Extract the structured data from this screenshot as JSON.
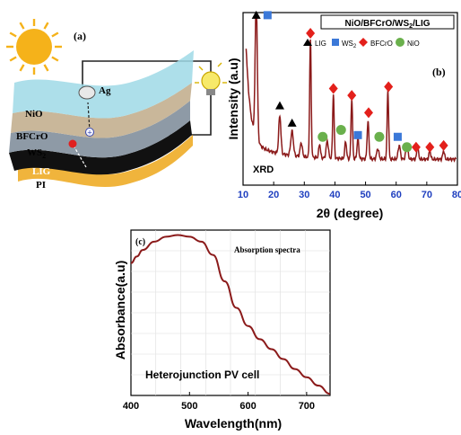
{
  "panel_a": {
    "label": "(a)",
    "layers": [
      "NiO",
      "BFCrO",
      "WS",
      "LIG",
      "PI"
    ],
    "ws_subscript": "2",
    "electrode": "Ag",
    "hole_symbol": "+",
    "colors": {
      "nio": "#9fd9e6",
      "bfcro": "#c9b79a",
      "ws2": "#8e9aa6",
      "lig": "#111111",
      "pi": "#f0b43c",
      "sun": "#f5b21a",
      "bulb": "#f7e96a"
    }
  },
  "chart_data": [
    {
      "panel": "(b)",
      "type": "line",
      "title_parts": [
        "NiO/BFCrO/WS",
        "2",
        "/LIG"
      ],
      "xlabel": "2θ (degree)",
      "ylabel": "Intensity (a.u)",
      "annotation": "XRD",
      "xlim": [
        10,
        80
      ],
      "xticks": [
        10,
        20,
        30,
        40,
        50,
        60,
        70,
        80
      ],
      "line_color": "#8b1a1a",
      "tick_color": "#1f3fbf",
      "legend": {
        "placement": "top",
        "entries": [
          {
            "label": "LIG",
            "marker": "triangle",
            "color": "#000000"
          },
          {
            "label": "WS",
            "sub": "2",
            "marker": "square",
            "color": "#3b78d8"
          },
          {
            "label": "BFCrO",
            "marker": "diamond",
            "color": "#e3201b"
          },
          {
            "label": "NiO",
            "marker": "circle",
            "color": "#6ab04c"
          }
        ]
      },
      "peaks": [
        {
          "x": 14.3,
          "h": 0.8,
          "w": 0.5
        },
        {
          "x": 22.0,
          "h": 0.22,
          "w": 0.5
        },
        {
          "x": 26.0,
          "h": 0.14,
          "w": 0.6
        },
        {
          "x": 29.0,
          "h": 0.08,
          "w": 0.5
        },
        {
          "x": 32.0,
          "h": 0.68,
          "w": 0.35
        },
        {
          "x": 35.0,
          "h": 0.08,
          "w": 0.4
        },
        {
          "x": 37.5,
          "h": 0.1,
          "w": 0.5
        },
        {
          "x": 39.5,
          "h": 0.37,
          "w": 0.35
        },
        {
          "x": 43.5,
          "h": 0.1,
          "w": 0.4
        },
        {
          "x": 45.5,
          "h": 0.35,
          "w": 0.35
        },
        {
          "x": 47.5,
          "h": 0.12,
          "w": 0.4
        },
        {
          "x": 50.8,
          "h": 0.22,
          "w": 0.4
        },
        {
          "x": 54.0,
          "h": 0.06,
          "w": 0.5
        },
        {
          "x": 57.3,
          "h": 0.4,
          "w": 0.35
        },
        {
          "x": 61.0,
          "h": 0.08,
          "w": 0.5
        },
        {
          "x": 63.5,
          "h": 0.08,
          "w": 0.5
        },
        {
          "x": 67.0,
          "h": 0.07,
          "w": 0.4
        },
        {
          "x": 71.0,
          "h": 0.05,
          "w": 0.4
        },
        {
          "x": 75.5,
          "h": 0.05,
          "w": 0.4
        }
      ],
      "markers": [
        {
          "x": 14.3,
          "y": 0.985,
          "marker": "triangle"
        },
        {
          "x": 18.0,
          "y": 0.985,
          "marker": "square"
        },
        {
          "x": 22.0,
          "y": 0.46,
          "marker": "triangle"
        },
        {
          "x": 26.0,
          "y": 0.36,
          "marker": "triangle"
        },
        {
          "x": 32.0,
          "y": 0.88,
          "marker": "diamond"
        },
        {
          "x": 36.0,
          "y": 0.28,
          "marker": "circle"
        },
        {
          "x": 39.5,
          "y": 0.56,
          "marker": "diamond"
        },
        {
          "x": 42.0,
          "y": 0.32,
          "marker": "circle"
        },
        {
          "x": 45.5,
          "y": 0.52,
          "marker": "diamond"
        },
        {
          "x": 47.5,
          "y": 0.29,
          "marker": "square"
        },
        {
          "x": 51.0,
          "y": 0.42,
          "marker": "diamond"
        },
        {
          "x": 54.5,
          "y": 0.28,
          "marker": "circle"
        },
        {
          "x": 57.5,
          "y": 0.57,
          "marker": "diamond"
        },
        {
          "x": 60.5,
          "y": 0.28,
          "marker": "square"
        },
        {
          "x": 63.5,
          "y": 0.22,
          "marker": "circle"
        },
        {
          "x": 66.5,
          "y": 0.22,
          "marker": "diamond"
        },
        {
          "x": 71.0,
          "y": 0.22,
          "marker": "diamond"
        },
        {
          "x": 75.5,
          "y": 0.23,
          "marker": "diamond"
        }
      ]
    },
    {
      "panel": "(c)",
      "type": "line",
      "title": "Absorption spectra",
      "xlabel": "Wavelength(nm)",
      "ylabel": "Absorbance(a.u)",
      "annotation": "Heterojunction PV cell",
      "xlim": [
        400,
        740
      ],
      "xticks": [
        400,
        500,
        600,
        700
      ],
      "ylim": [
        0,
        1
      ],
      "grid": true,
      "line_color": "#8b1a1a",
      "x": [
        400,
        410,
        420,
        440,
        460,
        480,
        500,
        520,
        540,
        560,
        580,
        600,
        620,
        640,
        660,
        680,
        700,
        720,
        740
      ],
      "y": [
        0.8,
        0.84,
        0.88,
        0.93,
        0.96,
        0.97,
        0.96,
        0.93,
        0.85,
        0.69,
        0.53,
        0.42,
        0.34,
        0.28,
        0.22,
        0.16,
        0.11,
        0.06,
        0.01
      ]
    }
  ]
}
